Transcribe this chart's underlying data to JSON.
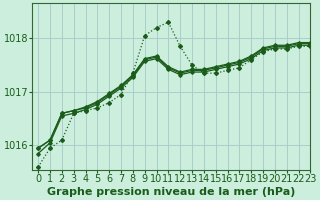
{
  "title": "Graphe pression niveau de la mer (hPa)",
  "bg_color": "#cceedd",
  "grid_color": "#aacccc",
  "line_color": "#1a5c1a",
  "spine_color": "#336633",
  "xlim": [
    -0.5,
    23
  ],
  "ylim": [
    1015.55,
    1018.65
  ],
  "yticks": [
    1016,
    1017,
    1018
  ],
  "xticks": [
    0,
    1,
    2,
    3,
    4,
    5,
    6,
    7,
    8,
    9,
    10,
    11,
    12,
    13,
    14,
    15,
    16,
    17,
    18,
    19,
    20,
    21,
    22,
    23
  ],
  "series_dotted": [
    1015.6,
    1015.95,
    1016.1,
    1016.6,
    1016.65,
    1016.7,
    1016.8,
    1016.95,
    1017.35,
    1018.05,
    1018.2,
    1018.3,
    1017.85,
    1017.5,
    1017.35,
    1017.35,
    1017.4,
    1017.45,
    1017.6,
    1017.75,
    1017.8,
    1017.8,
    1017.85,
    1017.85
  ],
  "series_solid": [
    [
      1015.95,
      1016.1,
      1016.6,
      1016.65,
      1016.7,
      1016.8,
      1016.95,
      1017.1,
      1017.3,
      1017.6,
      1017.65,
      1017.45,
      1017.35,
      1017.4,
      1017.4,
      1017.45,
      1017.5,
      1017.55,
      1017.65,
      1017.8,
      1017.85,
      1017.85,
      1017.9,
      1017.9
    ],
    [
      1015.95,
      1016.1,
      1016.6,
      1016.65,
      1016.72,
      1016.82,
      1016.97,
      1017.12,
      1017.32,
      1017.62,
      1017.67,
      1017.47,
      1017.37,
      1017.42,
      1017.42,
      1017.47,
      1017.52,
      1017.57,
      1017.67,
      1017.82,
      1017.87,
      1017.87,
      1017.92,
      1017.92
    ],
    [
      1015.85,
      1016.05,
      1016.55,
      1016.6,
      1016.67,
      1016.77,
      1016.92,
      1017.07,
      1017.27,
      1017.57,
      1017.62,
      1017.42,
      1017.32,
      1017.37,
      1017.37,
      1017.42,
      1017.47,
      1017.52,
      1017.62,
      1017.77,
      1017.82,
      1017.82,
      1017.87,
      1017.87
    ]
  ],
  "font_size_label": 8,
  "font_size_tick": 7
}
